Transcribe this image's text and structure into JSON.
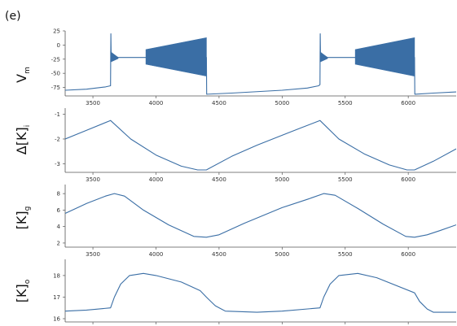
{
  "figure": {
    "panel_label": "(e)",
    "line_color": "#3a6ea5",
    "fill_color": "#3a6ea5"
  },
  "chart_data": [
    {
      "type": "line",
      "ylabel_main": "V",
      "ylabel_sub": "m",
      "xlim": [
        3280,
        6380
      ],
      "ylim": [
        -90,
        25
      ],
      "yticks": [
        25,
        0,
        -25,
        -50,
        -75
      ],
      "yticklabels": [
        "25",
        "0",
        "-25",
        "-50",
        "-75"
      ],
      "xticks": [
        3500,
        4000,
        4500,
        5000,
        5500,
        6000
      ],
      "xticklabels": [
        "3500",
        "4000",
        "4500",
        "5000",
        "5500",
        "6000"
      ],
      "series": [
        {
          "x": [
            3280,
            3450,
            3600,
            3640,
            3642,
            3644,
            3650,
            3700,
            3900,
            4400,
            4402,
            4600,
            5000,
            5200,
            5290,
            5300,
            5302,
            5304,
            5310,
            5360,
            5560,
            6050,
            6052,
            6200,
            6380
          ],
          "y": [
            -80,
            -78,
            -74,
            -72,
            20,
            -12,
            -18,
            -22,
            -22,
            -22,
            -87,
            -85,
            -80,
            -76,
            -72,
            -70,
            20,
            -12,
            -18,
            -22,
            -22,
            -22,
            -87,
            -85,
            -83
          ]
        }
      ],
      "bursts": [
        {
          "x": [
            3640,
            3700
          ],
          "upper": [
            -12,
            -22
          ],
          "lower": [
            -30,
            -24
          ]
        },
        {
          "x": [
            3920,
            4400
          ],
          "upper": [
            -8,
            13
          ],
          "lower": [
            -34,
            -55
          ]
        },
        {
          "x": [
            5300,
            5360
          ],
          "upper": [
            -12,
            -22
          ],
          "lower": [
            -30,
            -24
          ]
        },
        {
          "x": [
            5580,
            6050
          ],
          "upper": [
            -8,
            13
          ],
          "lower": [
            -34,
            -55
          ]
        }
      ]
    },
    {
      "type": "line",
      "ylabel_main": "Δ[K]",
      "ylabel_sub": "i",
      "xlim": [
        3280,
        6380
      ],
      "ylim": [
        -3.35,
        -0.75
      ],
      "yticks": [
        -1,
        -2,
        -3
      ],
      "yticklabels": [
        "-1",
        "-2",
        "-3"
      ],
      "xticks": [
        3500,
        4000,
        4500,
        5000,
        5500,
        6000
      ],
      "xticklabels": [
        "3500",
        "4000",
        "4500",
        "5000",
        "5500",
        "6000"
      ],
      "series": [
        {
          "x": [
            3280,
            3450,
            3640,
            3800,
            4000,
            4200,
            4330,
            4400,
            4600,
            4800,
            5000,
            5150,
            5300,
            5450,
            5650,
            5850,
            5990,
            6050,
            6200,
            6380
          ],
          "y": [
            -2.0,
            -1.65,
            -1.25,
            -2.0,
            -2.65,
            -3.1,
            -3.25,
            -3.25,
            -2.7,
            -2.25,
            -1.85,
            -1.55,
            -1.25,
            -2.0,
            -2.6,
            -3.05,
            -3.25,
            -3.25,
            -2.9,
            -2.4
          ]
        }
      ]
    },
    {
      "type": "line",
      "ylabel_main": "[K]",
      "ylabel_sub": "g",
      "xlim": [
        3280,
        6380
      ],
      "ylim": [
        1.5,
        9.1
      ],
      "yticks": [
        8,
        6,
        4,
        2
      ],
      "yticklabels": [
        "8",
        "6",
        "4",
        "2"
      ],
      "xticks": [
        3500,
        4000,
        4500,
        5000,
        5500,
        6000
      ],
      "xticklabels": [
        "3500",
        "4000",
        "4500",
        "5000",
        "5500",
        "6000"
      ],
      "series": [
        {
          "x": [
            3280,
            3450,
            3600,
            3670,
            3750,
            3900,
            4100,
            4300,
            4400,
            4500,
            4700,
            5000,
            5200,
            5330,
            5420,
            5600,
            5800,
            5980,
            6050,
            6150,
            6250,
            6380
          ],
          "y": [
            5.6,
            6.8,
            7.7,
            8.0,
            7.7,
            6.0,
            4.2,
            2.8,
            2.7,
            3.0,
            4.4,
            6.3,
            7.3,
            8.0,
            7.8,
            6.2,
            4.3,
            2.8,
            2.7,
            3.0,
            3.5,
            4.2
          ]
        }
      ]
    },
    {
      "type": "line",
      "ylabel_main": "[K]",
      "ylabel_sub": "o",
      "xlim": [
        3280,
        6380
      ],
      "ylim": [
        15.85,
        18.75
      ],
      "yticks": [
        18,
        17,
        16
      ],
      "yticklabels": [
        "18",
        "17",
        "16"
      ],
      "xticks": [
        3500,
        4000,
        4500,
        5000,
        5500,
        6000
      ],
      "xticklabels": [
        "",
        "",
        "",
        "",
        "",
        ""
      ],
      "series": [
        {
          "x": [
            3280,
            3450,
            3640,
            3670,
            3720,
            3790,
            3900,
            4000,
            4200,
            4350,
            4400,
            4470,
            4550,
            4800,
            5000,
            5300,
            5330,
            5380,
            5450,
            5600,
            5750,
            6050,
            6090,
            6150,
            6200,
            6380
          ],
          "y": [
            16.35,
            16.4,
            16.5,
            17.0,
            17.6,
            18.0,
            18.1,
            18.0,
            17.7,
            17.3,
            17.0,
            16.6,
            16.35,
            16.3,
            16.35,
            16.5,
            17.0,
            17.6,
            18.0,
            18.1,
            17.9,
            17.2,
            16.8,
            16.45,
            16.3,
            16.3
          ]
        }
      ]
    }
  ]
}
